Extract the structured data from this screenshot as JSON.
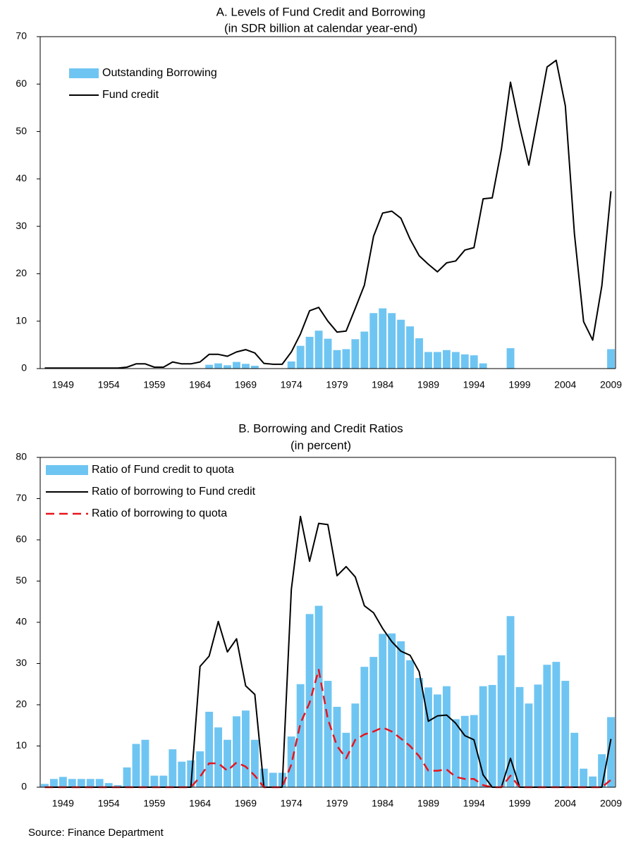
{
  "chart_data": [
    {
      "type": "combo",
      "title": "A. Levels of Fund Credit and Borrowing",
      "subtitle": "(in SDR billion at calendar year-end)",
      "categories": [
        null,
        null,
        "1949",
        null,
        null,
        null,
        null,
        "1954",
        null,
        null,
        null,
        null,
        "1959",
        null,
        null,
        null,
        null,
        "1964",
        null,
        null,
        null,
        null,
        "1969",
        null,
        null,
        null,
        null,
        "1974",
        null,
        null,
        null,
        null,
        "1979",
        null,
        null,
        null,
        null,
        "1984",
        null,
        null,
        null,
        null,
        "1989",
        null,
        null,
        null,
        null,
        "1994",
        null,
        null,
        null,
        null,
        "1999",
        null,
        null,
        null,
        null,
        "2004",
        null,
        null,
        null,
        null,
        "2009"
      ],
      "ylim": [
        0,
        70
      ],
      "yticks": [
        0,
        10,
        20,
        30,
        40,
        50,
        60,
        70
      ],
      "grid": false,
      "legend": "upper left",
      "series": [
        {
          "name": "Outstanding Borrowing",
          "type": "bar",
          "color": "#6fc5f2",
          "values": [
            0,
            0,
            0,
            0,
            0,
            0,
            0,
            0,
            0,
            0,
            0,
            0,
            0,
            0,
            0,
            0,
            0,
            0,
            0.8,
            1.1,
            0.7,
            1.4,
            1.0,
            0.6,
            0,
            0,
            0,
            1.5,
            4.8,
            6.7,
            8.0,
            6.3,
            3.9,
            4.1,
            6.2,
            7.8,
            11.7,
            12.7,
            11.7,
            10.3,
            8.9,
            6.4,
            3.5,
            3.5,
            3.9,
            3.5,
            3.0,
            2.8,
            1.1,
            0,
            0,
            4.3,
            0,
            0,
            0,
            0,
            0,
            0,
            0,
            0,
            0,
            0,
            4.1
          ]
        },
        {
          "name": "Fund credit",
          "type": "line",
          "color": "#000000",
          "dash": false,
          "values": [
            0.1,
            0.1,
            0.1,
            0.1,
            0.1,
            0.1,
            0.1,
            0.1,
            0.1,
            0.3,
            1.0,
            1.0,
            0.3,
            0.3,
            1.4,
            1.0,
            1.0,
            1.4,
            3.0,
            3.0,
            2.6,
            3.5,
            4.0,
            3.3,
            1.1,
            0.9,
            0.9,
            3.5,
            7.3,
            12.2,
            12.9,
            10.0,
            7.7,
            7.9,
            12.7,
            17.6,
            27.9,
            32.8,
            33.2,
            31.7,
            27.3,
            23.8,
            22.0,
            20.4,
            22.3,
            22.7,
            25.0,
            25.5,
            35.8,
            36.0,
            46.2,
            60.4,
            51.1,
            42.9,
            53.1,
            63.6,
            65.0,
            55.4,
            28.4,
            9.9,
            6.0,
            17.5,
            37.4
          ]
        }
      ]
    },
    {
      "type": "combo",
      "title": "B. Borrowing and Credit Ratios",
      "subtitle": "(in percent)",
      "categories": [
        null,
        null,
        "1949",
        null,
        null,
        null,
        null,
        "1954",
        null,
        null,
        null,
        null,
        "1959",
        null,
        null,
        null,
        null,
        "1964",
        null,
        null,
        null,
        null,
        "1969",
        null,
        null,
        null,
        null,
        "1974",
        null,
        null,
        null,
        null,
        "1979",
        null,
        null,
        null,
        null,
        "1984",
        null,
        null,
        null,
        null,
        "1989",
        null,
        null,
        null,
        null,
        "1994",
        null,
        null,
        null,
        null,
        "1999",
        null,
        null,
        null,
        null,
        "2004",
        null,
        null,
        null,
        null,
        "2009"
      ],
      "ylim": [
        0,
        80
      ],
      "yticks": [
        0,
        10,
        20,
        30,
        40,
        50,
        60,
        70,
        80
      ],
      "grid": false,
      "legend": "upper left",
      "series": [
        {
          "name": "Ratio of Fund credit to quota",
          "type": "bar",
          "color": "#6fc5f2",
          "values": [
            0.8,
            2.0,
            2.5,
            2.0,
            2.0,
            2.0,
            2.0,
            1.0,
            0.5,
            4.8,
            10.5,
            11.5,
            2.8,
            2.8,
            9.2,
            6.2,
            6.5,
            8.7,
            18.3,
            14.5,
            11.5,
            17.2,
            18.6,
            11.5,
            4.5,
            3.5,
            3.5,
            12.3,
            25.0,
            42.0,
            44.0,
            25.8,
            19.5,
            13.2,
            20.3,
            29.2,
            31.6,
            37.2,
            37.3,
            35.4,
            30.8,
            26.5,
            24.2,
            22.5,
            24.5,
            16.5,
            17.3,
            17.5,
            24.5,
            24.8,
            32.0,
            41.5,
            24.3,
            20.3,
            24.9,
            29.7,
            30.4,
            25.8,
            13.2,
            4.5,
            2.6,
            8.0,
            17.0
          ]
        },
        {
          "name": "Ratio of borrowing to Fund credit",
          "type": "line",
          "color": "#000000",
          "dash": false,
          "values": [
            0,
            0,
            0,
            0,
            0,
            0,
            0,
            0,
            0,
            0,
            0,
            0,
            0,
            0,
            0,
            0,
            0,
            29.3,
            31.8,
            40.2,
            32.8,
            36.0,
            24.6,
            22.5,
            0,
            0,
            0,
            48.0,
            65.7,
            54.8,
            64.0,
            63.7,
            51.3,
            53.5,
            51.0,
            44.0,
            42.3,
            38.5,
            35.3,
            33.0,
            32.0,
            28.0,
            16.0,
            17.3,
            17.5,
            15.5,
            12.5,
            11.5,
            3.0,
            0,
            0,
            7.0,
            0,
            0,
            0,
            0,
            0,
            0,
            0,
            0,
            0,
            0,
            11.7
          ]
        },
        {
          "name": "Ratio of borrowing to quota",
          "type": "line",
          "color": "#e8141c",
          "dash": true,
          "values": [
            0,
            0,
            0,
            0,
            0,
            0,
            0,
            0,
            0,
            0,
            0,
            0,
            0,
            0,
            0,
            0,
            0,
            2.5,
            5.8,
            5.8,
            4.0,
            6.0,
            5.0,
            2.8,
            0,
            0,
            0,
            5.5,
            15.5,
            20.5,
            28.5,
            16.5,
            10.0,
            7.0,
            11.5,
            12.8,
            13.5,
            14.5,
            13.5,
            11.8,
            10.0,
            7.5,
            4.0,
            4.0,
            4.3,
            2.5,
            2.0,
            2.0,
            0.5,
            0,
            0,
            2.8,
            0,
            0,
            0,
            0,
            0,
            0,
            0,
            0,
            0,
            0,
            1.8
          ]
        }
      ]
    }
  ],
  "source": "Source: Finance Department"
}
